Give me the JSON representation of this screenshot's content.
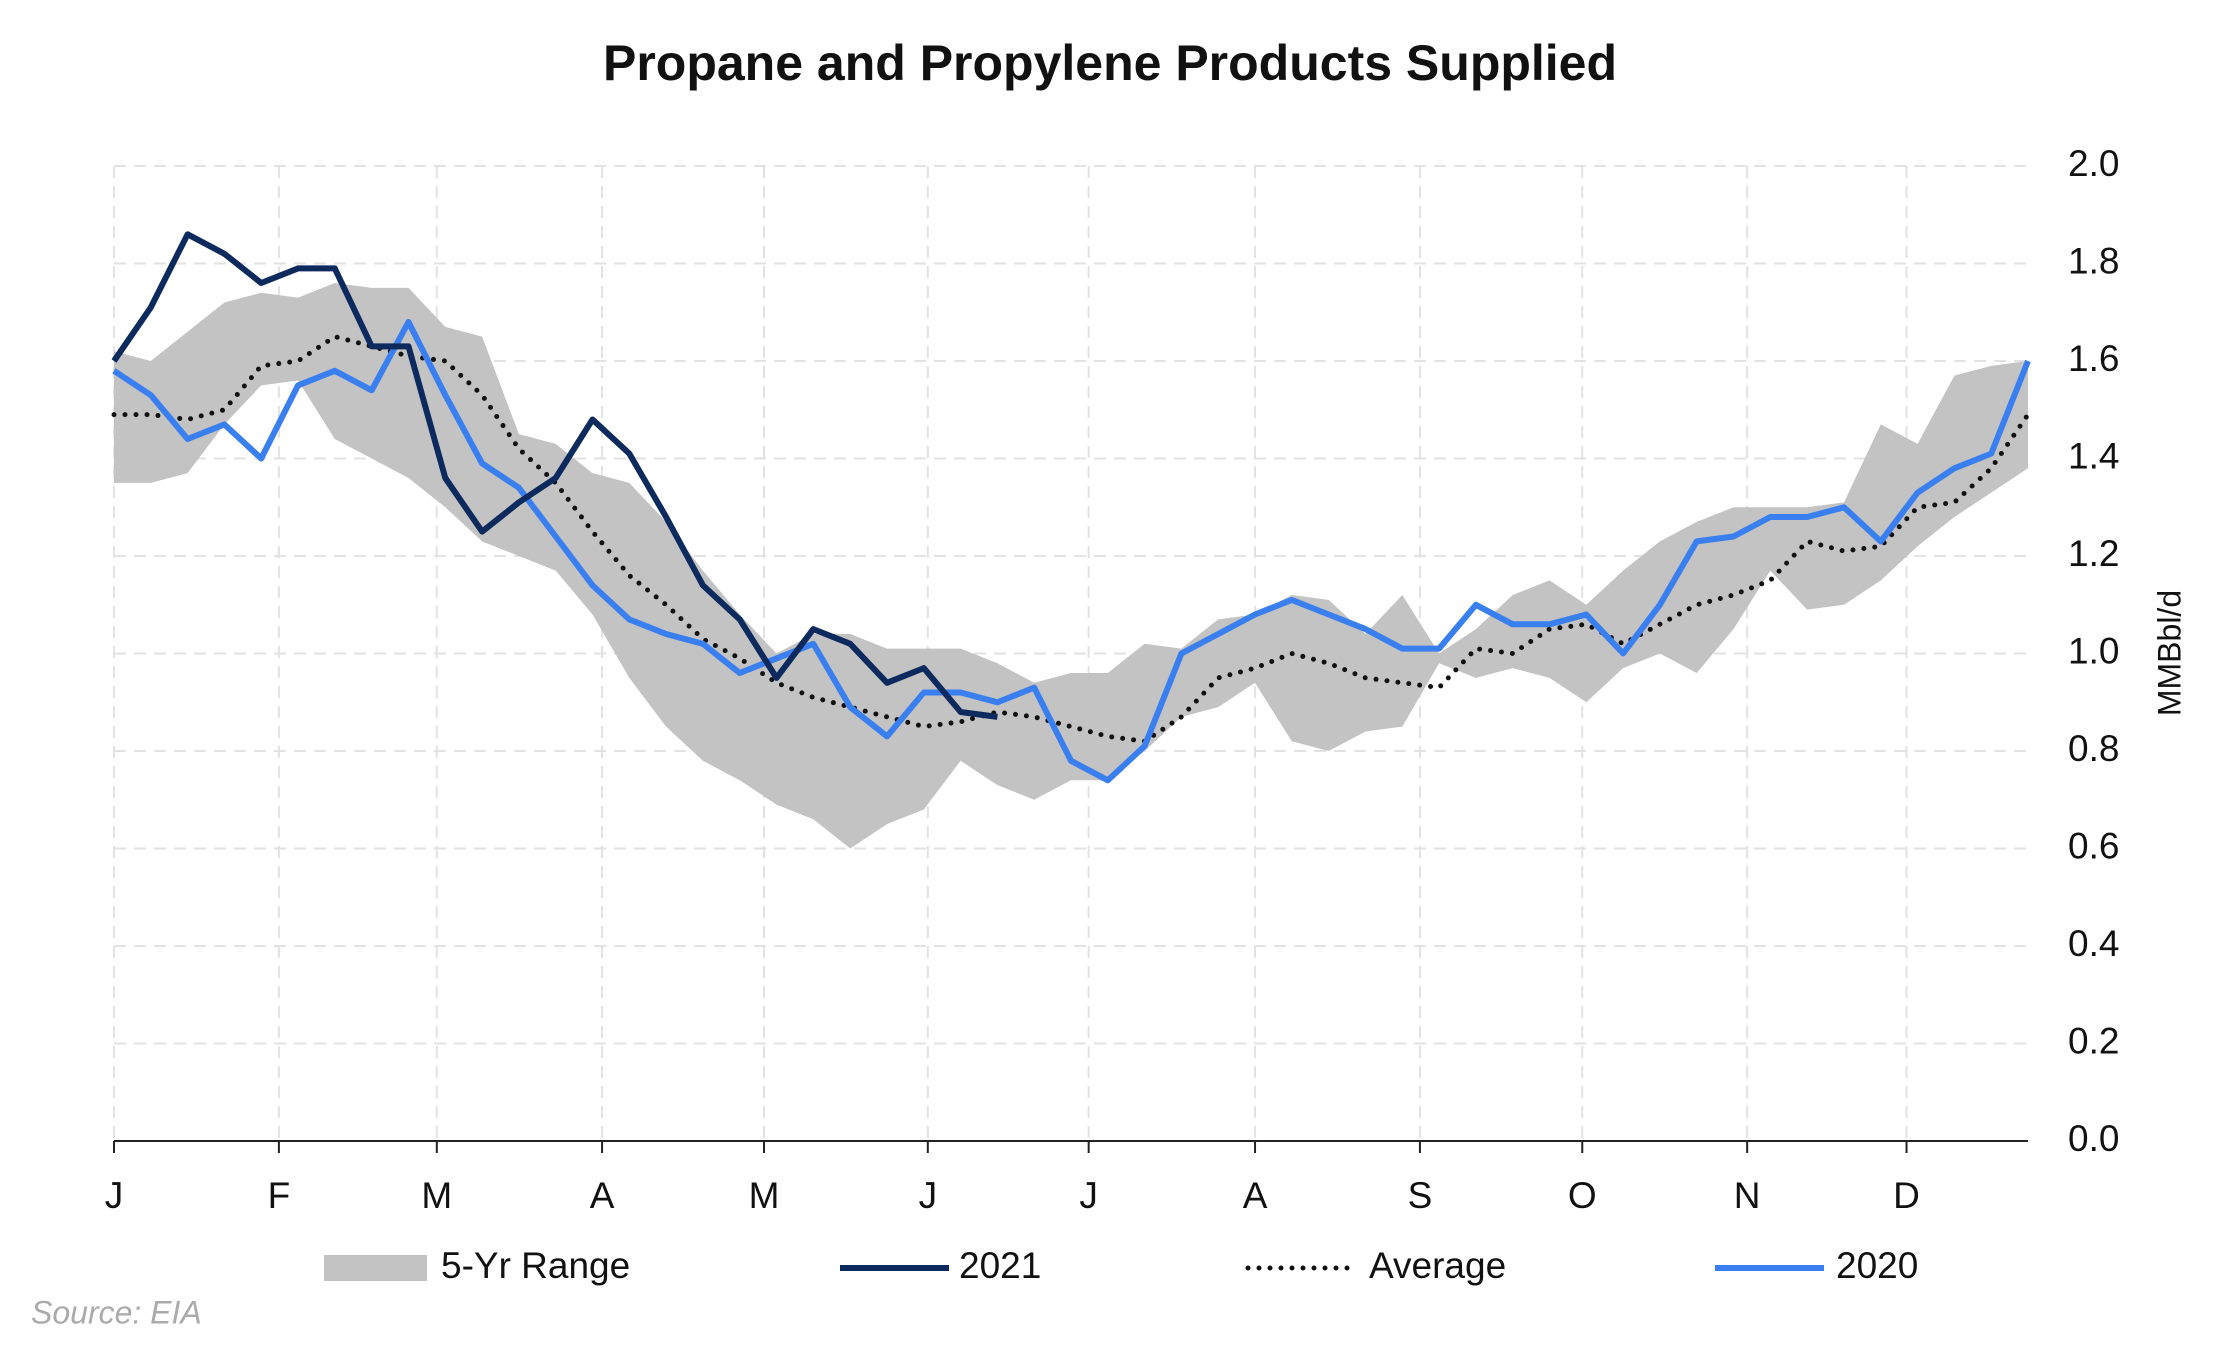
{
  "chart_data": {
    "type": "line",
    "title": "Propane and Propylene Products Supplied",
    "y_axis_label": "MMBbl/d",
    "source": "Source: EIA",
    "xlim": [
      0,
      52
    ],
    "xticks": [
      {
        "value": 0,
        "label": "J"
      },
      {
        "value": 4.48,
        "label": "F"
      },
      {
        "value": 8.77,
        "label": "M"
      },
      {
        "value": 13.26,
        "label": "A"
      },
      {
        "value": 17.66,
        "label": "M"
      },
      {
        "value": 22.11,
        "label": "J"
      },
      {
        "value": 26.48,
        "label": "J"
      },
      {
        "value": 31.0,
        "label": "A"
      },
      {
        "value": 35.48,
        "label": "S"
      },
      {
        "value": 39.89,
        "label": "O"
      },
      {
        "value": 44.37,
        "label": "N"
      },
      {
        "value": 48.7,
        "label": "D"
      }
    ],
    "ylim": [
      0,
      2
    ],
    "yticks": [
      {
        "value": 0,
        "label": "0.0"
      },
      {
        "value": 0.2,
        "label": "0.2"
      },
      {
        "value": 0.4,
        "label": "0.4"
      },
      {
        "value": 0.6,
        "label": "0.6"
      },
      {
        "value": 0.8,
        "label": "0.8"
      },
      {
        "value": 1.0,
        "label": "1.0"
      },
      {
        "value": 1.2,
        "label": "1.2"
      },
      {
        "value": 1.4,
        "label": "1.4"
      },
      {
        "value": 1.6,
        "label": "1.6"
      },
      {
        "value": 1.8,
        "label": "1.8"
      },
      {
        "value": 2.0,
        "label": "2.0"
      }
    ],
    "grid": true,
    "legend": "bottom",
    "series": [
      {
        "name": "5-Yr Range",
        "kind": "range",
        "color": "#c3c3c3",
        "high": [
          1.62,
          1.6,
          1.66,
          1.72,
          1.74,
          1.73,
          1.76,
          1.75,
          1.75,
          1.67,
          1.65,
          1.45,
          1.43,
          1.37,
          1.35,
          1.27,
          1.17,
          1.08,
          1.0,
          1.04,
          1.04,
          1.01,
          1.01,
          1.01,
          0.98,
          0.94,
          0.96,
          0.96,
          1.02,
          1.01,
          1.07,
          1.08,
          1.12,
          1.11,
          1.04,
          1.12,
          1.0,
          1.05,
          1.12,
          1.15,
          1.1,
          1.17,
          1.23,
          1.27,
          1.3,
          1.3,
          1.3,
          1.31,
          1.47,
          1.43,
          1.57,
          1.59,
          1.6
        ],
        "low": [
          1.35,
          1.35,
          1.37,
          1.47,
          1.55,
          1.56,
          1.44,
          1.4,
          1.36,
          1.3,
          1.23,
          1.2,
          1.17,
          1.08,
          0.95,
          0.85,
          0.78,
          0.74,
          0.69,
          0.66,
          0.6,
          0.65,
          0.68,
          0.78,
          0.73,
          0.7,
          0.74,
          0.74,
          0.8,
          0.87,
          0.89,
          0.94,
          0.82,
          0.8,
          0.84,
          0.85,
          0.98,
          0.95,
          0.97,
          0.95,
          0.9,
          0.97,
          1.0,
          0.96,
          1.05,
          1.17,
          1.09,
          1.1,
          1.15,
          1.22,
          1.28,
          1.33,
          1.38
        ]
      },
      {
        "name": "2021",
        "kind": "line",
        "color": "#0d2a5e",
        "values": [
          1.6,
          1.71,
          1.86,
          1.82,
          1.76,
          1.79,
          1.79,
          1.63,
          1.63,
          1.36,
          1.25,
          1.31,
          1.36,
          1.48,
          1.41,
          1.28,
          1.14,
          1.07,
          0.95,
          1.05,
          1.02,
          0.94,
          0.97,
          0.88,
          0.87
        ]
      },
      {
        "name": "Average",
        "kind": "dotted",
        "color": "#111111",
        "values": [
          1.49,
          1.49,
          1.48,
          1.5,
          1.59,
          1.6,
          1.65,
          1.63,
          1.61,
          1.6,
          1.53,
          1.42,
          1.35,
          1.25,
          1.16,
          1.1,
          1.03,
          0.99,
          0.94,
          0.91,
          0.89,
          0.87,
          0.85,
          0.86,
          0.88,
          0.87,
          0.85,
          0.83,
          0.82,
          0.87,
          0.95,
          0.97,
          1.0,
          0.98,
          0.95,
          0.94,
          0.93,
          1.01,
          1.0,
          1.05,
          1.06,
          1.02,
          1.06,
          1.1,
          1.12,
          1.15,
          1.23,
          1.21,
          1.22,
          1.3,
          1.31,
          1.38,
          1.49
        ]
      },
      {
        "name": "2020",
        "kind": "line",
        "color": "#3a7ff0",
        "values": [
          1.58,
          1.53,
          1.44,
          1.47,
          1.4,
          1.55,
          1.58,
          1.54,
          1.68,
          1.53,
          1.39,
          1.34,
          1.24,
          1.14,
          1.07,
          1.04,
          1.02,
          0.96,
          0.99,
          1.02,
          0.89,
          0.83,
          0.92,
          0.92,
          0.9,
          0.93,
          0.78,
          0.74,
          0.81,
          1.0,
          1.04,
          1.08,
          1.11,
          1.08,
          1.05,
          1.01,
          1.01,
          1.1,
          1.06,
          1.06,
          1.08,
          1.0,
          1.1,
          1.23,
          1.24,
          1.28,
          1.28,
          1.3,
          1.23,
          1.33,
          1.38,
          1.41,
          1.6
        ]
      }
    ]
  }
}
